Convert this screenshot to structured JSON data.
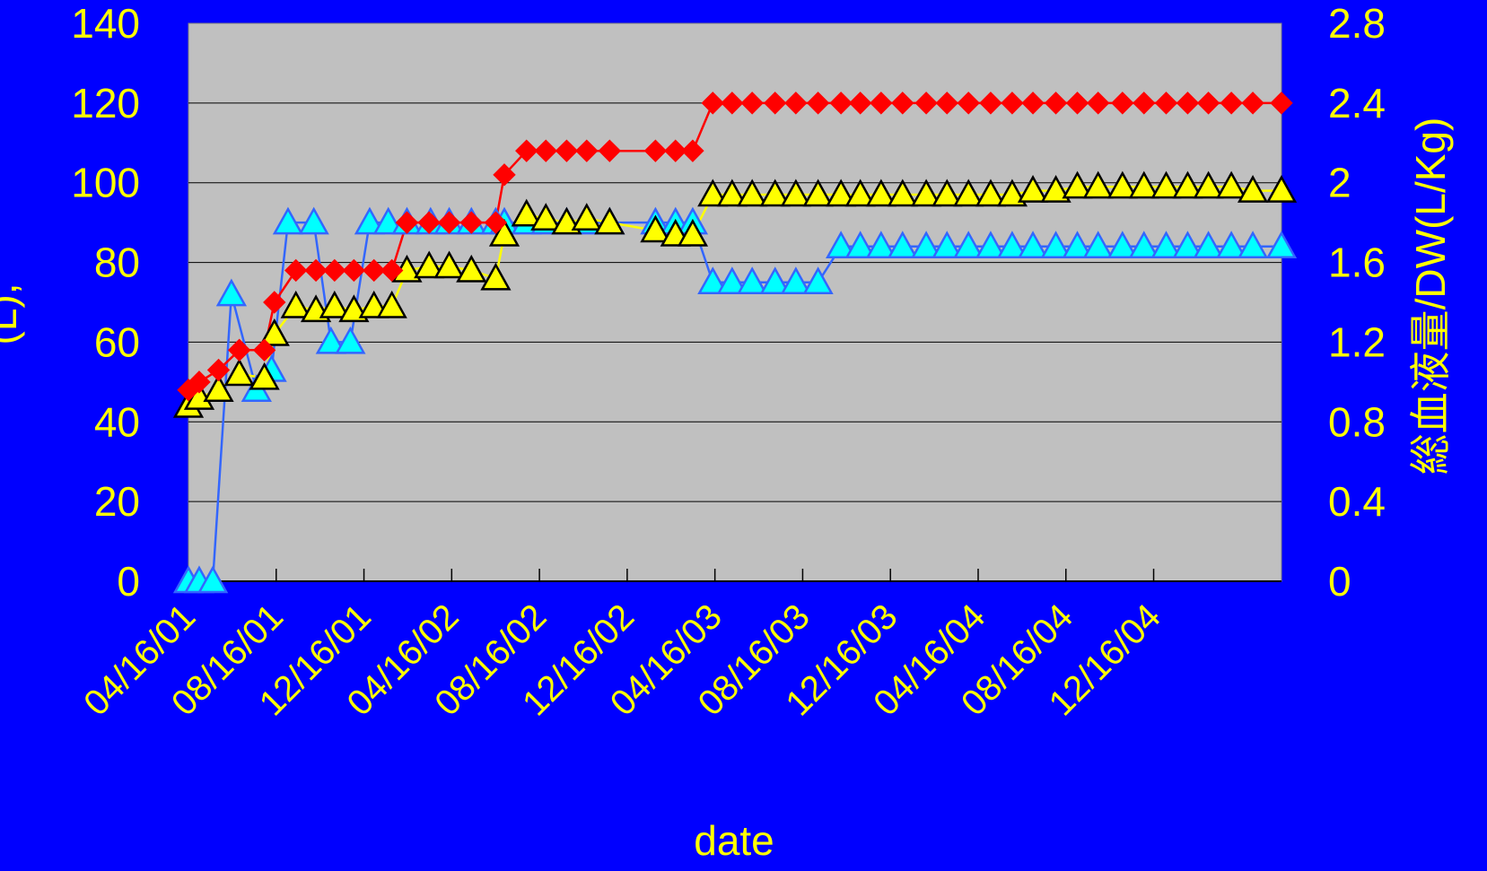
{
  "colors": {
    "background": "#0000FF",
    "plot_area": "#C0C0C0",
    "text": "#FFFF00",
    "gridline": "#000000",
    "series_red": "#FF0000",
    "series_cyan": "#00FFFF",
    "series_cyan_line": "#3366FF",
    "series_yellow": "#FFFF00"
  },
  "chart_data": {
    "type": "line",
    "title": "",
    "xlabel": "date",
    "ylabel_left": "(L),",
    "ylabel_right": "総血液量/DW(L/Kg)",
    "x_tick_labels": [
      "04/16/01",
      "08/16/01",
      "12/16/01",
      "04/16/02",
      "08/16/02",
      "12/16/02",
      "04/16/03",
      "08/16/03",
      "12/16/03",
      "04/16/04",
      "08/16/04",
      "12/16/04"
    ],
    "x_range": [
      "2001-04-16",
      "2005-06-20"
    ],
    "y_left": {
      "ticks": [
        "0",
        "20",
        "40",
        "60",
        "80",
        "100",
        "120",
        "140"
      ],
      "ylim": [
        0,
        140
      ]
    },
    "y_right": {
      "ticks": [
        "0",
        "0.4",
        "0.8",
        "1.2",
        "1.6",
        "2",
        "2.4",
        "2.8"
      ],
      "ylim": [
        0,
        2.8
      ]
    },
    "grid": "horizontal",
    "legend": "none",
    "series": [
      {
        "marker": "diamond",
        "axis": "left",
        "points": [
          [
            "2001-04-16",
            48
          ],
          [
            "2001-05-01",
            50
          ],
          [
            "2001-05-28",
            53
          ],
          [
            "2001-06-26",
            58
          ],
          [
            "2001-07-31",
            58
          ],
          [
            "2001-08-14",
            70
          ],
          [
            "2001-09-13",
            78
          ],
          [
            "2001-10-11",
            78
          ],
          [
            "2001-11-06",
            78
          ],
          [
            "2001-12-03",
            78
          ],
          [
            "2001-12-31",
            78
          ],
          [
            "2002-01-25",
            78
          ],
          [
            "2002-02-15",
            90
          ],
          [
            "2002-03-18",
            90
          ],
          [
            "2002-04-15",
            90
          ],
          [
            "2002-05-16",
            90
          ],
          [
            "2002-06-19",
            90
          ],
          [
            "2002-07-01",
            102
          ],
          [
            "2002-08-01",
            108
          ],
          [
            "2002-08-28",
            108
          ],
          [
            "2002-09-26",
            108
          ],
          [
            "2002-10-24",
            108
          ],
          [
            "2002-11-25",
            108
          ],
          [
            "2003-01-28",
            108
          ],
          [
            "2003-02-25",
            108
          ],
          [
            "2003-03-21",
            108
          ],
          [
            "2003-04-18",
            120
          ],
          [
            "2003-05-15",
            120
          ],
          [
            "2003-06-12",
            120
          ],
          [
            "2003-07-14",
            120
          ],
          [
            "2003-08-12",
            120
          ],
          [
            "2003-09-12",
            120
          ],
          [
            "2003-10-14",
            120
          ],
          [
            "2003-11-10",
            120
          ],
          [
            "2003-12-09",
            120
          ],
          [
            "2004-01-08",
            120
          ],
          [
            "2004-02-10",
            120
          ],
          [
            "2004-03-10",
            120
          ],
          [
            "2004-04-09",
            120
          ],
          [
            "2004-05-10",
            120
          ],
          [
            "2004-06-09",
            120
          ],
          [
            "2004-07-08",
            120
          ],
          [
            "2004-08-09",
            120
          ],
          [
            "2004-09-08",
            120
          ],
          [
            "2004-10-07",
            120
          ],
          [
            "2004-11-10",
            120
          ],
          [
            "2004-12-10",
            120
          ],
          [
            "2005-01-10",
            120
          ],
          [
            "2005-02-09",
            120
          ],
          [
            "2005-03-10",
            120
          ],
          [
            "2005-04-11",
            120
          ],
          [
            "2005-05-11",
            120
          ],
          [
            "2005-06-20",
            120
          ]
        ]
      },
      {
        "marker": "triangle",
        "axis": "left",
        "points": [
          [
            "2001-04-16",
            0
          ],
          [
            "2001-05-01",
            0
          ],
          [
            "2001-05-20",
            0
          ],
          [
            "2001-06-15",
            72
          ],
          [
            "2001-07-20",
            48
          ],
          [
            "2001-08-10",
            53
          ],
          [
            "2001-09-02",
            90
          ],
          [
            "2001-10-08",
            90
          ],
          [
            "2001-11-01",
            60
          ],
          [
            "2001-11-28",
            60
          ],
          [
            "2001-12-25",
            90
          ],
          [
            "2002-01-20",
            90
          ],
          [
            "2002-02-15",
            90
          ],
          [
            "2002-03-20",
            90
          ],
          [
            "2002-04-15",
            90
          ],
          [
            "2002-05-16",
            90
          ],
          [
            "2002-06-19",
            90
          ],
          [
            "2002-07-01",
            90
          ],
          [
            "2002-08-01",
            90
          ],
          [
            "2002-08-28",
            90
          ],
          [
            "2002-09-26",
            90
          ],
          [
            "2002-10-24",
            90
          ],
          [
            "2002-11-25",
            90
          ],
          [
            "2003-01-28",
            90
          ],
          [
            "2003-02-25",
            90
          ],
          [
            "2003-03-21",
            90
          ],
          [
            "2003-04-18",
            75
          ],
          [
            "2003-05-15",
            75
          ],
          [
            "2003-06-12",
            75
          ],
          [
            "2003-07-14",
            75
          ],
          [
            "2003-08-12",
            75
          ],
          [
            "2003-09-12",
            75
          ],
          [
            "2003-10-14",
            84
          ],
          [
            "2003-11-10",
            84
          ],
          [
            "2003-12-09",
            84
          ],
          [
            "2004-01-08",
            84
          ],
          [
            "2004-02-10",
            84
          ],
          [
            "2004-03-10",
            84
          ],
          [
            "2004-04-09",
            84
          ],
          [
            "2004-05-10",
            84
          ],
          [
            "2004-06-09",
            84
          ],
          [
            "2004-07-08",
            84
          ],
          [
            "2004-08-09",
            84
          ],
          [
            "2004-09-08",
            84
          ],
          [
            "2004-10-07",
            84
          ],
          [
            "2004-11-10",
            84
          ],
          [
            "2004-12-10",
            84
          ],
          [
            "2005-01-10",
            84
          ],
          [
            "2005-02-09",
            84
          ],
          [
            "2005-03-10",
            84
          ],
          [
            "2005-04-11",
            84
          ],
          [
            "2005-05-11",
            84
          ],
          [
            "2005-06-20",
            84
          ]
        ]
      },
      {
        "marker": "triangle",
        "axis": "right",
        "points": [
          [
            "2001-04-16",
            0.88
          ],
          [
            "2001-05-01",
            0.92
          ],
          [
            "2001-05-28",
            0.96
          ],
          [
            "2001-06-26",
            1.04
          ],
          [
            "2001-07-31",
            1.02
          ],
          [
            "2001-08-14",
            1.24
          ],
          [
            "2001-09-13",
            1.38
          ],
          [
            "2001-10-11",
            1.36
          ],
          [
            "2001-11-06",
            1.38
          ],
          [
            "2001-12-03",
            1.36
          ],
          [
            "2001-12-31",
            1.38
          ],
          [
            "2002-01-25",
            1.38
          ],
          [
            "2002-02-15",
            1.56
          ],
          [
            "2002-03-18",
            1.58
          ],
          [
            "2002-04-15",
            1.58
          ],
          [
            "2002-05-16",
            1.56
          ],
          [
            "2002-06-19",
            1.52
          ],
          [
            "2002-07-01",
            1.74
          ],
          [
            "2002-08-01",
            1.84
          ],
          [
            "2002-08-28",
            1.82
          ],
          [
            "2002-09-26",
            1.8
          ],
          [
            "2002-10-24",
            1.82
          ],
          [
            "2002-11-25",
            1.8
          ],
          [
            "2003-01-28",
            1.76
          ],
          [
            "2003-02-25",
            1.74
          ],
          [
            "2003-03-21",
            1.74
          ],
          [
            "2003-04-18",
            1.94
          ],
          [
            "2003-05-15",
            1.94
          ],
          [
            "2003-06-12",
            1.94
          ],
          [
            "2003-07-14",
            1.94
          ],
          [
            "2003-08-12",
            1.94
          ],
          [
            "2003-09-12",
            1.94
          ],
          [
            "2003-10-14",
            1.94
          ],
          [
            "2003-11-10",
            1.94
          ],
          [
            "2003-12-09",
            1.94
          ],
          [
            "2004-01-08",
            1.94
          ],
          [
            "2004-02-10",
            1.94
          ],
          [
            "2004-03-10",
            1.94
          ],
          [
            "2004-04-09",
            1.94
          ],
          [
            "2004-05-10",
            1.94
          ],
          [
            "2004-06-09",
            1.94
          ],
          [
            "2004-07-08",
            1.96
          ],
          [
            "2004-08-09",
            1.96
          ],
          [
            "2004-09-08",
            1.98
          ],
          [
            "2004-10-07",
            1.98
          ],
          [
            "2004-11-10",
            1.98
          ],
          [
            "2004-12-10",
            1.98
          ],
          [
            "2005-01-10",
            1.98
          ],
          [
            "2005-02-09",
            1.98
          ],
          [
            "2005-03-10",
            1.98
          ],
          [
            "2005-04-11",
            1.98
          ],
          [
            "2005-05-11",
            1.96
          ],
          [
            "2005-06-20",
            1.96
          ]
        ]
      }
    ]
  }
}
